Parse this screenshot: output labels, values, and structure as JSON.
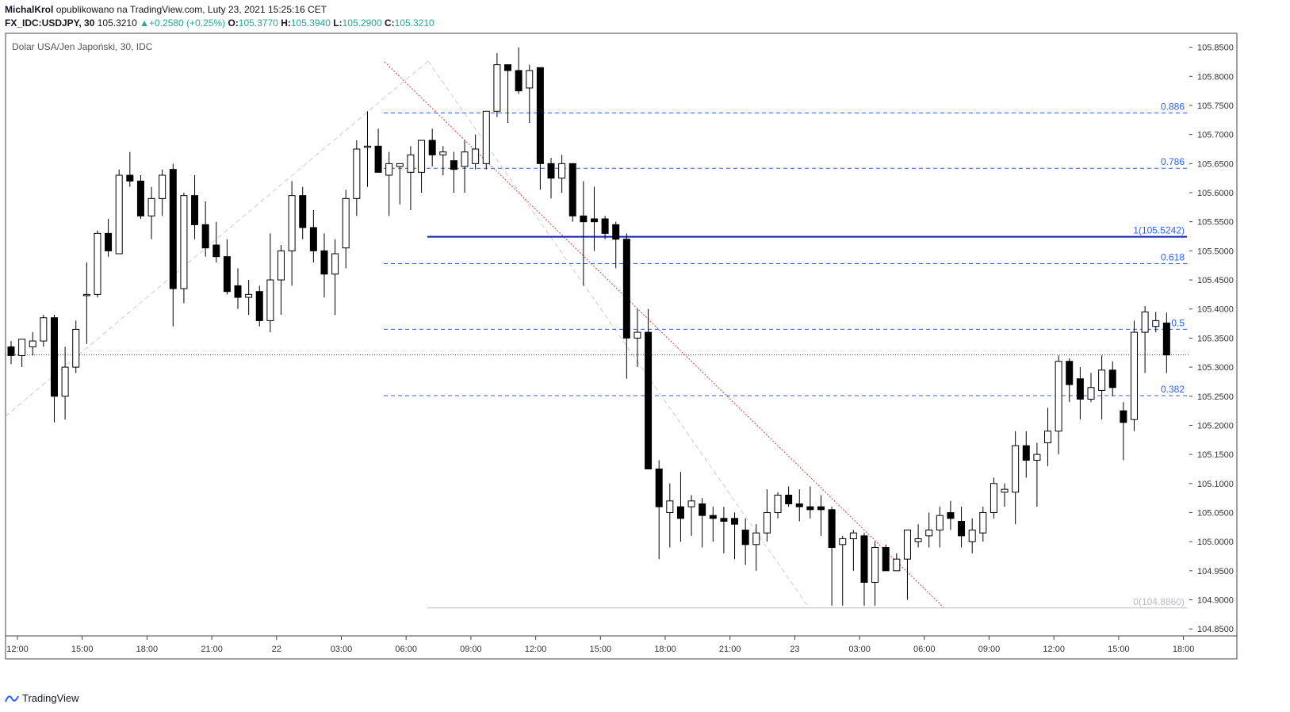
{
  "header": {
    "author": "MichalKrol",
    "published": "opublikowano na TradingView.com, Luty 23, 2021 15:25:16 CET",
    "symbol": "FX_IDC:USDJPY, 30",
    "last": "105.3210",
    "change": "+0.2580 (+0.25%)",
    "o_label": "O:",
    "o_value": "105.3770",
    "h_label": "H:",
    "h_value": "105.3940",
    "l_label": "L:",
    "l_value": "105.2900",
    "c_label": "C:",
    "c_value": "105.3210"
  },
  "footer": {
    "brand": "TradingView"
  },
  "colors": {
    "up_body": "#ffffff",
    "down_body": "#000000",
    "fib": "#2962ff",
    "fib_level_one": "#0d1fb5",
    "trend": "#e53935",
    "grid_text": "#787b86"
  },
  "chart_data": {
    "type": "candlestick",
    "title": "Dolar USA/Jen Japoński, 30, IDC",
    "y_ticks": [
      "105.8500",
      "105.8000",
      "105.7500",
      "105.7000",
      "105.6500",
      "105.6000",
      "105.5500",
      "105.5000",
      "105.4500",
      "105.4000",
      "105.3500",
      "105.3000",
      "105.2500",
      "105.2000",
      "105.1500",
      "105.1000",
      "105.0500",
      "105.0000",
      "104.9500",
      "104.9000",
      "104.8500"
    ],
    "ylim": [
      104.838,
      105.874
    ],
    "x_ticks": [
      "12:00",
      "15:00",
      "18:00",
      "21:00",
      "22",
      "03:00",
      "06:00",
      "09:00",
      "12:00",
      "15:00",
      "18:00",
      "21:00",
      "23",
      "03:00",
      "06:00",
      "09:00",
      "12:00",
      "15:00",
      "18:00"
    ],
    "current_price": 105.321,
    "fib_levels": [
      {
        "label": "0.886",
        "value": 105.737
      },
      {
        "label": "0.786",
        "value": 105.642
      },
      {
        "label": "1(105.5242)",
        "value": 105.5242
      },
      {
        "label": "0.618",
        "value": 105.478
      },
      {
        "label": "0.5",
        "value": 105.365
      },
      {
        "label": "0.382",
        "value": 105.251
      },
      {
        "label": "0(104.8860)",
        "value": 104.886
      }
    ],
    "candles": [
      [
        105.335,
        105.345,
        105.305,
        105.32
      ],
      [
        105.32,
        105.348,
        105.3,
        105.348
      ],
      [
        105.335,
        105.36,
        105.32,
        105.345
      ],
      [
        105.345,
        105.39,
        105.335,
        105.385
      ],
      [
        105.385,
        105.39,
        105.205,
        105.25
      ],
      [
        105.25,
        105.335,
        105.21,
        105.3
      ],
      [
        105.3,
        105.38,
        105.29,
        105.365
      ],
      [
        105.425,
        105.48,
        105.34,
        105.425
      ],
      [
        105.425,
        105.535,
        105.42,
        105.53
      ],
      [
        105.53,
        105.555,
        105.49,
        105.5
      ],
      [
        105.495,
        105.64,
        105.495,
        105.63
      ],
      [
        105.63,
        105.67,
        105.61,
        105.62
      ],
      [
        105.62,
        105.63,
        105.555,
        105.56
      ],
      [
        105.56,
        105.61,
        105.52,
        105.59
      ],
      [
        105.59,
        105.64,
        105.56,
        105.63
      ],
      [
        105.64,
        105.65,
        105.37,
        105.435
      ],
      [
        105.435,
        105.6,
        105.41,
        105.595
      ],
      [
        105.595,
        105.63,
        105.52,
        105.545
      ],
      [
        105.545,
        105.585,
        105.49,
        105.505
      ],
      [
        105.51,
        105.55,
        105.48,
        105.49
      ],
      [
        105.49,
        105.52,
        105.425,
        105.43
      ],
      [
        105.44,
        105.47,
        105.4,
        105.42
      ],
      [
        105.42,
        105.45,
        105.39,
        105.425
      ],
      [
        105.43,
        105.44,
        105.37,
        105.38
      ],
      [
        105.38,
        105.53,
        105.36,
        105.45
      ],
      [
        105.45,
        105.51,
        105.39,
        105.5
      ],
      [
        105.5,
        105.62,
        105.44,
        105.595
      ],
      [
        105.595,
        105.61,
        105.52,
        105.54
      ],
      [
        105.54,
        105.57,
        105.48,
        105.5
      ],
      [
        105.5,
        105.53,
        105.42,
        105.46
      ],
      [
        105.46,
        105.52,
        105.39,
        105.495
      ],
      [
        105.505,
        105.605,
        105.47,
        105.59
      ],
      [
        105.59,
        105.69,
        105.56,
        105.675
      ],
      [
        105.68,
        105.74,
        105.61,
        105.68
      ],
      [
        105.68,
        105.71,
        105.64,
        105.635
      ],
      [
        105.63,
        105.67,
        105.56,
        105.65
      ],
      [
        105.645,
        105.65,
        105.58,
        105.65
      ],
      [
        105.635,
        105.68,
        105.57,
        105.665
      ],
      [
        105.635,
        105.69,
        105.6,
        105.69
      ],
      [
        105.69,
        105.71,
        105.645,
        105.665
      ],
      [
        105.665,
        105.68,
        105.63,
        105.67
      ],
      [
        105.655,
        105.67,
        105.6,
        105.64
      ],
      [
        105.645,
        105.69,
        105.6,
        105.67
      ],
      [
        105.65,
        105.7,
        105.64,
        105.675
      ],
      [
        105.65,
        105.74,
        105.64,
        105.74
      ],
      [
        105.74,
        105.84,
        105.73,
        105.82
      ],
      [
        105.82,
        105.82,
        105.72,
        105.81
      ],
      [
        105.81,
        105.85,
        105.77,
        105.775
      ],
      [
        105.78,
        105.82,
        105.72,
        105.81
      ],
      [
        105.815,
        105.815,
        105.605,
        105.65
      ],
      [
        105.65,
        105.66,
        105.59,
        105.625
      ],
      [
        105.625,
        105.665,
        105.6,
        105.65
      ],
      [
        105.65,
        105.65,
        105.55,
        105.56
      ],
      [
        105.56,
        105.62,
        105.44,
        105.55
      ],
      [
        105.555,
        105.61,
        105.5,
        105.55
      ],
      [
        105.555,
        105.56,
        105.52,
        105.53
      ],
      [
        105.545,
        105.55,
        105.47,
        105.52
      ],
      [
        105.52,
        105.53,
        105.28,
        105.35
      ],
      [
        105.35,
        105.4,
        105.3,
        105.36
      ],
      [
        105.36,
        105.4,
        105.13,
        105.125
      ],
      [
        105.125,
        105.14,
        104.97,
        105.06
      ],
      [
        105.05,
        105.1,
        104.99,
        105.07
      ],
      [
        105.06,
        105.12,
        105.0,
        105.04
      ],
      [
        105.06,
        105.08,
        105.01,
        105.07
      ],
      [
        105.065,
        105.075,
        104.99,
        105.045
      ],
      [
        105.045,
        105.06,
        105.0,
        105.04
      ],
      [
        105.04,
        105.06,
        104.98,
        105.035
      ],
      [
        105.04,
        105.05,
        104.97,
        105.03
      ],
      [
        105.02,
        105.04,
        104.96,
        104.995
      ],
      [
        104.995,
        105.03,
        104.95,
        105.015
      ],
      [
        105.015,
        105.09,
        105.0,
        105.05
      ],
      [
        105.05,
        105.085,
        105.04,
        105.08
      ],
      [
        105.08,
        105.095,
        105.06,
        105.065
      ],
      [
        105.065,
        105.09,
        105.035,
        105.06
      ],
      [
        105.06,
        105.095,
        105.04,
        105.055
      ],
      [
        105.06,
        105.08,
        105.01,
        105.055
      ],
      [
        105.055,
        105.06,
        104.89,
        104.99
      ],
      [
        104.995,
        105.01,
        104.89,
        105.005
      ],
      [
        105.005,
        105.02,
        104.95,
        105.015
      ],
      [
        105.01,
        105.015,
        104.89,
        104.93
      ],
      [
        104.93,
        105.0,
        104.89,
        104.99
      ],
      [
        104.99,
        104.995,
        104.95,
        104.95
      ],
      [
        104.95,
        104.98,
        104.95,
        104.97
      ],
      [
        104.97,
        105.01,
        104.9,
        105.02
      ],
      [
        105.0,
        105.03,
        104.99,
        105.005
      ],
      [
        105.01,
        105.05,
        104.99,
        105.02
      ],
      [
        105.02,
        105.06,
        104.99,
        105.045
      ],
      [
        105.05,
        105.07,
        105.02,
        105.04
      ],
      [
        105.035,
        105.06,
        104.99,
        105.01
      ],
      [
        105.0,
        105.04,
        104.98,
        105.02
      ],
      [
        105.015,
        105.06,
        105.0,
        105.05
      ],
      [
        105.05,
        105.11,
        105.04,
        105.1
      ],
      [
        105.085,
        105.1,
        105.06,
        105.09
      ],
      [
        105.085,
        105.19,
        105.03,
        105.165
      ],
      [
        105.165,
        105.19,
        105.11,
        105.14
      ],
      [
        105.14,
        105.17,
        105.06,
        105.15
      ],
      [
        105.17,
        105.23,
        105.13,
        105.19
      ],
      [
        105.19,
        105.32,
        105.15,
        105.31
      ],
      [
        105.31,
        105.315,
        105.24,
        105.27
      ],
      [
        105.28,
        105.3,
        105.21,
        105.245
      ],
      [
        105.245,
        105.29,
        105.24,
        105.265
      ],
      [
        105.26,
        105.32,
        105.21,
        105.295
      ],
      [
        105.295,
        105.31,
        105.25,
        105.265
      ],
      [
        105.225,
        105.24,
        105.14,
        105.205
      ],
      [
        105.21,
        105.38,
        105.19,
        105.36
      ],
      [
        105.36,
        105.405,
        105.29,
        105.395
      ],
      [
        105.37,
        105.395,
        105.36,
        105.38
      ],
      [
        105.376,
        105.394,
        105.29,
        105.321
      ]
    ]
  }
}
